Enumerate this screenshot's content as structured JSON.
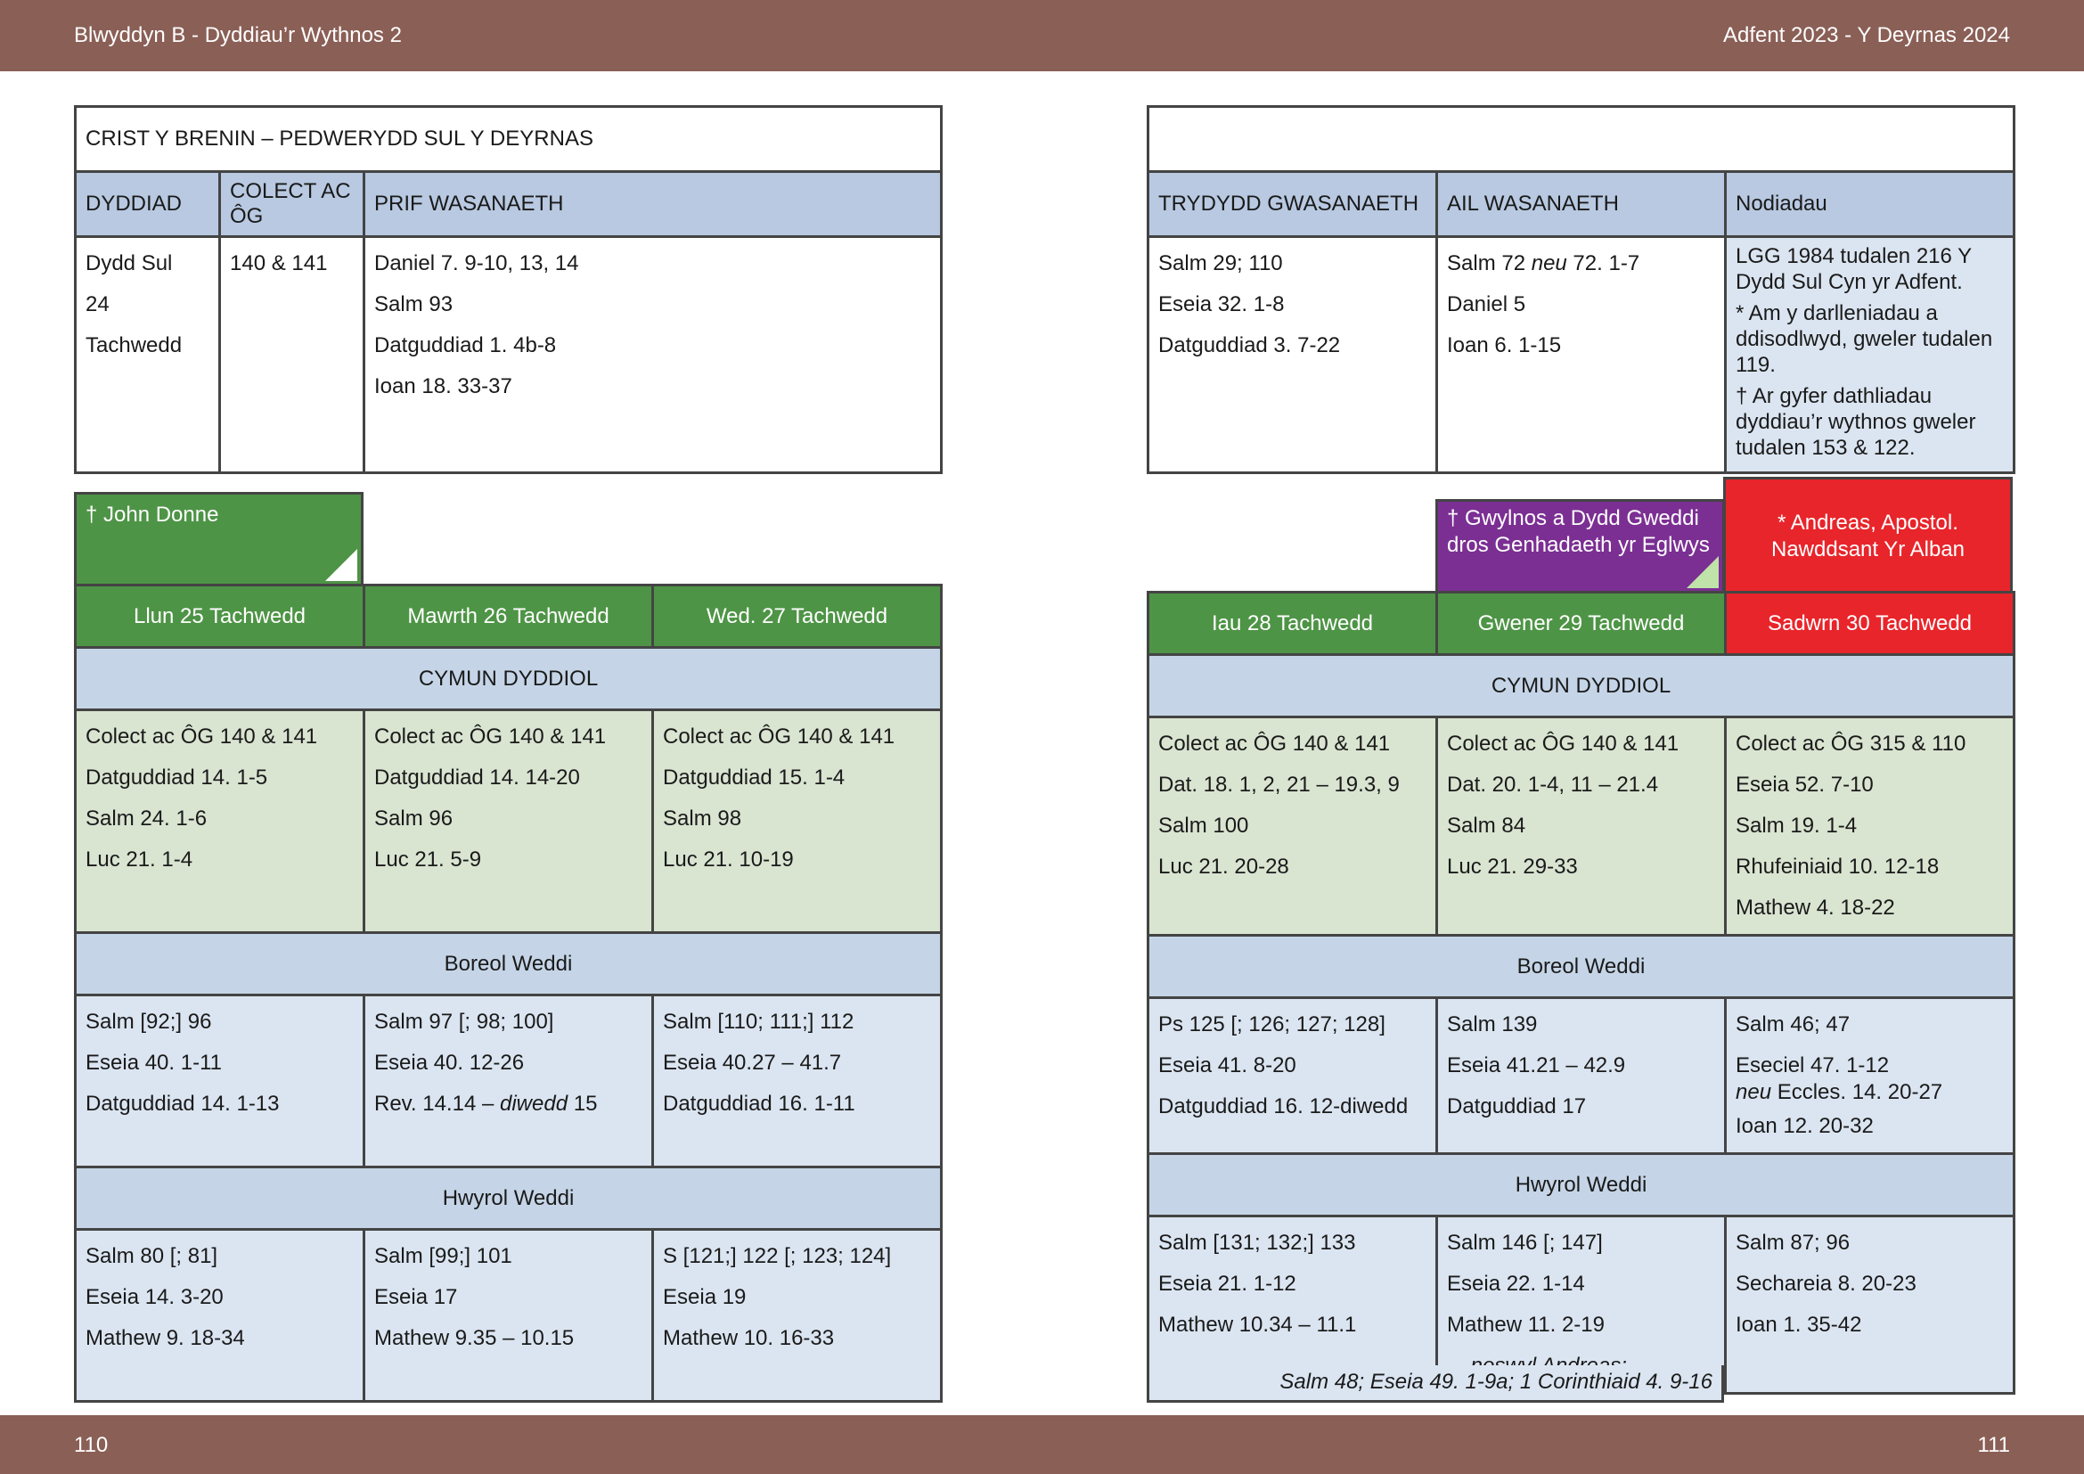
{
  "header": {
    "left": "Blwyddyn  B - Dyddiau’r Wythnos 2",
    "right": "Adfent  2023 - Y Deyrnas 2024"
  },
  "footer": {
    "left": "110",
    "right": "111"
  },
  "sunday": {
    "title": "CRIST Y BRENIN – PEDWERYDD SUL Y DEYRNAS",
    "headers": [
      "DYDDIAD",
      "COLECT AC ÔG",
      "PRIF WASANAETH"
    ],
    "date": [
      "Dydd Sul",
      "24",
      "Tachwedd"
    ],
    "colect": "140 & 141",
    "prif": [
      "Daniel 7. 9-10, 13, 14",
      "Salm 93",
      "Datguddiad 1. 4b-8",
      "Ioan 18. 33-37"
    ]
  },
  "sunday_right": {
    "headers": [
      "TRYDYDD GWASANAETH",
      "AIL WASANAETH",
      "Nodiadau"
    ],
    "trydydd": [
      "Salm 29; 110",
      "Eseia 32. 1-8",
      "Datguddiad 3. 7-22"
    ],
    "ail_1_pre": "Salm 72 ",
    "ail_1_em": "neu",
    "ail_1_post": " 72. 1-7",
    "ail_rest": [
      "Daniel 5",
      "Ioan 6. 1-15"
    ],
    "notes": [
      "LGG 1984 tudalen 216 Y Dydd Sul Cyn yr Adfent.",
      "* Am y darlleniadau a ddisodlwyd, gweler tudalen 119.",
      "† Ar gyfer dathliadau dyddiau’r wythnos gweler tudalen 153 & 122."
    ]
  },
  "left_week": {
    "flag": "† John Donne",
    "days": [
      "Llun 25 Tachwedd",
      "Mawrth 26 Tachwedd",
      "Wed.  27 Tachwedd"
    ],
    "cymun_title": "CYMUN DYDDIOL",
    "cymun": [
      [
        "Colect ac ÔG 140 & 141",
        "Datguddiad 14. 1-5",
        "Salm 24. 1-6",
        "Luc 21. 1-4"
      ],
      [
        "Colect ac ÔG 140 & 141",
        "Datguddiad 14. 14-20",
        "Salm 96",
        "Luc 21. 5-9"
      ],
      [
        "Colect ac ÔG 140 & 141",
        "Datguddiad 15. 1-4",
        "Salm 98",
        "Luc 21. 10-19"
      ]
    ],
    "boreol_title": "Boreol Weddi",
    "boreol": {
      "c0": [
        "Salm [92;] 96",
        "Eseia 40. 1-11",
        "Datguddiad 14. 1-13"
      ],
      "c1a": [
        "Salm 97 [; 98; 100]",
        "Eseia 40. 12-26"
      ],
      "c1_rev_pre": "Rev. 14.14 – ",
      "c1_rev_em": "diwedd",
      "c1_rev_post": " 15",
      "c2": [
        "Salm [110; 111;] 112",
        "Eseia 40.27 – 41.7",
        "Datguddiad 16. 1-11"
      ]
    },
    "hwyrol_title": "Hwyrol Weddi",
    "hwyrol": [
      [
        "Salm 80 [; 81]",
        "Eseia 14. 3-20",
        "Mathew 9. 18-34"
      ],
      [
        "Salm [99;] 101",
        "Eseia 17",
        "Mathew 9.35 – 10.15"
      ],
      [
        "S [121;] 122 [; 123; 124]",
        "Eseia 19",
        "Mathew 10. 16-33"
      ]
    ]
  },
  "right_week": {
    "flag_purple": "† Gwylnos a Dydd Gweddi dros Genhadaeth yr Eglwys",
    "flag_red": "* Andreas, Apostol. Nawddsant Yr Alban",
    "days": [
      "Iau 28 Tachwedd",
      "Gwener 29 Tachwedd",
      "Sadwrn 30 Tachwedd"
    ],
    "cymun_title": "CYMUN DYDDIOL",
    "cymun": [
      [
        "Colect ac ÔG 140 & 141",
        "Dat. 18. 1, 2, 21 – 19.3, 9",
        "Salm 100",
        "Luc 21. 20-28"
      ],
      [
        "Colect ac ÔG 140 & 141",
        "Dat. 20. 1-4, 11 – 21.4",
        "Salm 84",
        "Luc 21. 29-33"
      ],
      [
        "Colect ac ÔG 315 & 110",
        "Eseia 52. 7-10",
        "Salm 19. 1-4",
        "Rhufeiniaid 10. 12-18",
        "Mathew 4. 18-22"
      ]
    ],
    "boreol_title": "Boreol Weddi",
    "boreol": {
      "c0": [
        "Ps 125 [; 126; 127; 128]",
        "Eseia 41. 8-20",
        "Datguddiad 16. 12-diwedd"
      ],
      "c1": [
        "Salm 139",
        "Eseia 41.21 – 42.9",
        "Datguddiad 17"
      ],
      "c2_a": "Salm 46; 47",
      "c2_b": "Eseciel 47. 1-12",
      "c2_neu": "neu",
      "c2_c": " Eccles. 14. 20-27",
      "c2_d": "Ioan 12. 20-32"
    },
    "hwyrol_title": "Hwyrol Weddi",
    "hwyrol": {
      "c0": [
        "Salm [131; 132;] 133",
        "Eseia 21. 1-12",
        "Mathew 10.34 – 11.1"
      ],
      "c1": [
        "Salm 146 [; 147]",
        "Eseia 22. 1-14",
        "Mathew 11. 2-19"
      ],
      "c1_eve": "... noswyl Andreas:",
      "c2": [
        "Salm 87; 96",
        "Sechareia 8. 20-23",
        "Ioan 1. 35-42"
      ]
    },
    "eve_readings": "Salm 48;  Eseia 49. 1-9a;  1 Corinthiaid 4. 9-16"
  },
  "colors": {
    "band": "#8a5f56",
    "green": "#4e9446",
    "purple": "#7b2f93",
    "red": "#e8252b",
    "header_blue": "#b8c9e1",
    "light_green": "#d9e4d1",
    "light_blue": "#dbe5f1"
  }
}
